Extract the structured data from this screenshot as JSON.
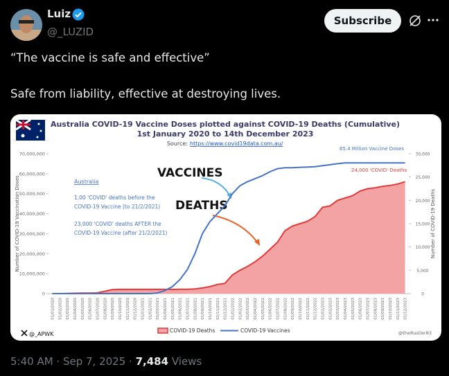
{
  "tweet": {
    "author": "Luiz",
    "handle": "@_LUZID",
    "button": "Subscribe",
    "text": [
      "“The vaccine is safe and effective”",
      "Safe from liability, effective at destroying lives."
    ],
    "time": "5:40 AM",
    "date": "Sep 7, 2025",
    "views": "7,484",
    "views_label": "Views"
  },
  "chart_data": {
    "type": "line",
    "title": "Australia COVID-19 Vaccine Doses plotted against COVID-19 Deaths (Cumulative)",
    "subtitle": "1st January 2020 to 14th December 2023",
    "source_label": "Source:",
    "source_url": "https://www.covid19data.com.au/",
    "ylabel": "Number of COVID-19 Vaccination Doses",
    "y2label": "Number of COVID-19 Deaths",
    "annotations": [
      "65.4 Million Vaccine Doses",
      "24,000 'COVID' Deaths",
      "VACCINES",
      "DEATHS",
      "Australia",
      "1,00 'COVID' deaths before the",
      "COVID-19 Vaccine (to 21/2/2021)",
      "23,000 'COVID' deaths AFTER the",
      "COVID-19 Vaccine (after 21/2/2021)"
    ],
    "watermarks": [
      "@_APWK",
      "@theRustler83"
    ],
    "categories": [
      "01/01/2020",
      "01/02/2020",
      "01/03/2020",
      "01/04/2020",
      "01/05/2020",
      "01/06/2020",
      "01/07/2020",
      "01/08/2020",
      "01/09/2020",
      "01/10/2020",
      "01/11/2020",
      "01/12/2020",
      "01/01/2021",
      "01/02/2021",
      "01/03/2021",
      "01/04/2021",
      "01/05/2021",
      "01/06/2021",
      "01/07/2021",
      "01/08/2021",
      "01/09/2021",
      "01/10/2021",
      "01/11/2021",
      "01/12/2021",
      "01/01/2022",
      "01/02/2022",
      "01/03/2022",
      "01/04/2022",
      "01/05/2022",
      "01/06/2022",
      "01/07/2022",
      "01/08/2022",
      "01/09/2022",
      "01/10/2022",
      "01/11/2022",
      "01/12/2022",
      "01/01/2023",
      "01/02/2023",
      "01/03/2023",
      "01/04/2023",
      "01/05/2023",
      "01/06/2023",
      "01/07/2023",
      "01/08/2023",
      "01/09/2023",
      "01/10/2023",
      "01/11/2023",
      "01/12/2023"
    ],
    "series": [
      {
        "name": "COVID-19 Deaths",
        "color": "#e03a3a",
        "fill": "#f3a3a3",
        "axis": "y2",
        "area": true,
        "values": [
          0,
          0,
          50,
          80,
          100,
          100,
          150,
          500,
          850,
          900,
          905,
          908,
          909,
          909,
          909,
          910,
          910,
          915,
          920,
          1000,
          1200,
          1500,
          1950,
          2200,
          4000,
          5000,
          5800,
          6800,
          8000,
          9500,
          11000,
          13500,
          14500,
          15000,
          15500,
          16500,
          18500,
          18800,
          20000,
          20500,
          21000,
          22000,
          22500,
          22700,
          23000,
          23200,
          23500,
          24000
        ]
      },
      {
        "name": "COVID-19 Vaccines",
        "color": "#4472c4",
        "axis": "y",
        "values": [
          0,
          0,
          0,
          0,
          0,
          0,
          0,
          0,
          0,
          0,
          0,
          0,
          0,
          0,
          300000,
          1500000,
          3500000,
          7000000,
          12000000,
          20000000,
          30000000,
          36000000,
          40000000,
          44000000,
          50000000,
          54000000,
          56000000,
          57500000,
          59000000,
          61000000,
          62500000,
          63000000,
          63000000,
          63200000,
          63300000,
          63500000,
          64000000,
          64500000,
          65000000,
          65400000,
          65400000,
          65400000,
          65400000,
          65400000,
          65400000,
          65400000,
          65400000,
          65400000
        ]
      }
    ],
    "ylim": [
      0,
      70000000
    ],
    "yticks": [
      0,
      {
        "value": 10000000,
        "label": "10,000,000"
      },
      {
        "value": 20000000,
        "label": "20,000,000"
      },
      {
        "value": 30000000,
        "label": "30,000,000"
      },
      {
        "value": 40000000,
        "label": "40,000,000"
      },
      {
        "value": 50000000,
        "label": "50,000,000"
      },
      {
        "value": 60000000,
        "label": "60,000,000"
      },
      {
        "value": 70000000,
        "label": "70,000,000"
      }
    ],
    "y2lim": [
      0,
      30000
    ],
    "y2ticks": [
      0,
      {
        "value": 5000,
        "label": "5,000"
      },
      {
        "value": 10000,
        "label": "10,000"
      },
      {
        "value": 15000,
        "label": "15,000"
      },
      {
        "value": 20000,
        "label": "20,000"
      },
      {
        "value": 25000,
        "label": "25,000"
      },
      {
        "value": 30000,
        "label": "30,000"
      }
    ]
  }
}
